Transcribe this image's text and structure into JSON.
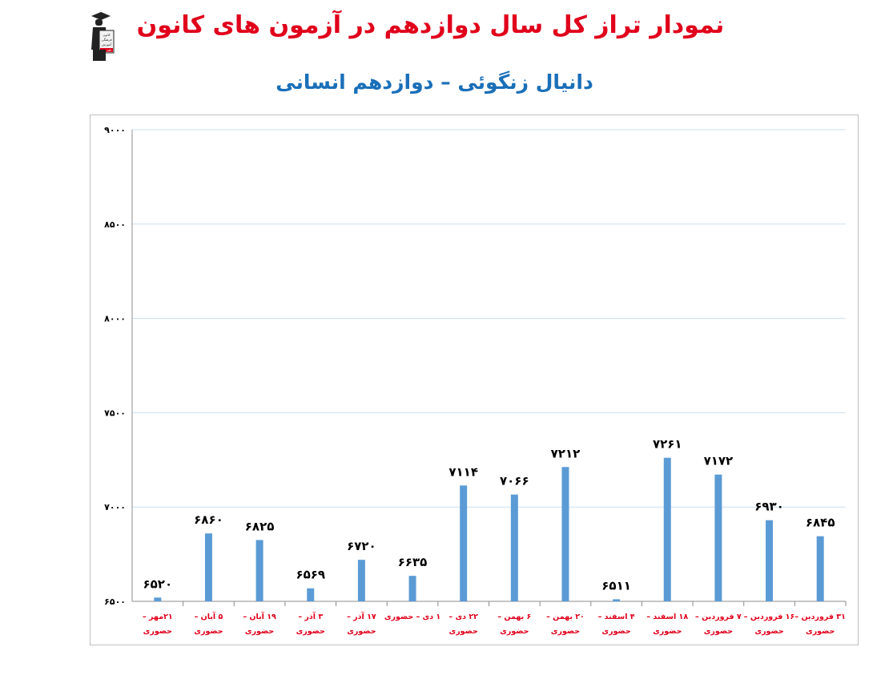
{
  "header": {
    "title": "نمودار تراز کل سال دوازدهم در آزمون های کانون",
    "subtitle": "دانیال زنگوئی – دوازدهم انسانی",
    "logo_text": [
      "کانون",
      "فرهنگی",
      "آموزش",
      "قلم چی"
    ]
  },
  "colors": {
    "title": "#e0001b",
    "subtitle": "#1a6fb8",
    "bar": "#5b9bd5",
    "grid": "#c9dff0",
    "category_label": "#e0001b",
    "value_label": "#000000"
  },
  "chart_data": {
    "type": "bar",
    "title": "",
    "xlabel": "",
    "ylabel": "",
    "ylim": [
      6500,
      9000
    ],
    "yticks": [
      6500,
      7000,
      7500,
      8000,
      8500,
      9000
    ],
    "ytick_labels": [
      "۶۵۰۰",
      "۷۰۰۰",
      "۷۵۰۰",
      "۸۰۰۰",
      "۸۵۰۰",
      "۹۰۰۰"
    ],
    "grid": true,
    "legend": "none",
    "categories": [
      [
        "۲۱مهر –",
        "حضوری"
      ],
      [
        "۵ آبان –",
        "حضوری"
      ],
      [
        "۱۹ آبان –",
        "حضوری"
      ],
      [
        "۳ آذر –",
        "حضوری"
      ],
      [
        "۱۷ آذر –",
        "حضوری"
      ],
      [
        "۱ دی – حضوری",
        ""
      ],
      [
        "۲۲ دی –",
        "حضوری"
      ],
      [
        "۶ بهمن –",
        "حضوری"
      ],
      [
        "۲۰ بهمن –",
        "حضوری"
      ],
      [
        "۴ اسفند –",
        "حضوری"
      ],
      [
        "۱۸ اسفند –",
        "حضوری"
      ],
      [
        "۷ فروردین –",
        "حضوری"
      ],
      [
        "۱۶ فروردین –",
        "حضوری"
      ],
      [
        "۳۱ فروردین –",
        "حضوری"
      ]
    ],
    "values": [
      6520,
      6860,
      6825,
      6569,
      6720,
      6635,
      7114,
      7066,
      7212,
      6511,
      7261,
      7172,
      6930,
      6845
    ],
    "value_labels": [
      "۶۵۲۰",
      "۶۸۶۰",
      "۶۸۲۵",
      "۶۵۶۹",
      "۶۷۲۰",
      "۶۶۳۵",
      "۷۱۱۴",
      "۷۰۶۶",
      "۷۲۱۲",
      "۶۵۱۱",
      "۷۲۶۱",
      "۷۱۷۲",
      "۶۹۳۰",
      "۶۸۴۵"
    ]
  }
}
